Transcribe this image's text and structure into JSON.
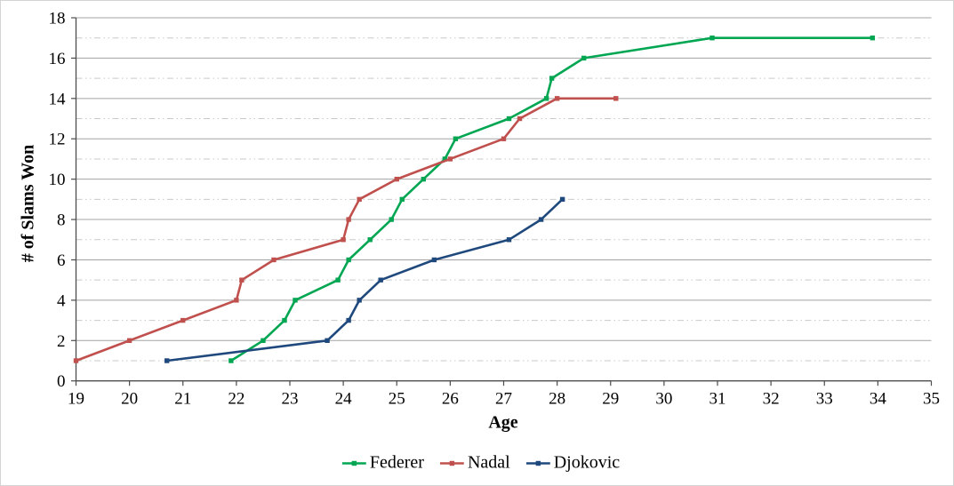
{
  "chart_data": {
    "type": "line",
    "title": "",
    "xlabel": "Age",
    "ylabel": "# of Slams Won",
    "xlim": [
      19,
      35
    ],
    "ylim": [
      0,
      18
    ],
    "xticks": [
      19,
      20,
      21,
      22,
      23,
      24,
      25,
      26,
      27,
      28,
      29,
      30,
      31,
      32,
      33,
      34,
      35
    ],
    "yticks": [
      0,
      2,
      4,
      6,
      8,
      10,
      12,
      14,
      16,
      18
    ],
    "grid": {
      "major_style": "solid",
      "major_values": [
        2,
        4,
        6,
        8,
        10,
        12,
        14,
        16,
        18
      ],
      "minor_style": "dash-dot",
      "minor_values": [
        1,
        3,
        5,
        7,
        9,
        11,
        13,
        15,
        17
      ],
      "major_color": "#a3a3a3",
      "minor_color": "#c9c9c9"
    },
    "axis_color": "#4d4d4d",
    "legend_position": "bottom",
    "series": [
      {
        "name": "Federer",
        "color": "#00a651",
        "points": [
          [
            21.9,
            1
          ],
          [
            22.5,
            2
          ],
          [
            22.9,
            3
          ],
          [
            23.1,
            4
          ],
          [
            23.9,
            5
          ],
          [
            24.1,
            6
          ],
          [
            24.5,
            7
          ],
          [
            24.9,
            8
          ],
          [
            25.1,
            9
          ],
          [
            25.5,
            10
          ],
          [
            25.9,
            11
          ],
          [
            26.1,
            12
          ],
          [
            27.1,
            13
          ],
          [
            27.8,
            14
          ],
          [
            27.9,
            15
          ],
          [
            28.5,
            16
          ],
          [
            30.9,
            17
          ],
          [
            33.9,
            17
          ]
        ]
      },
      {
        "name": "Nadal",
        "color": "#c0504d",
        "points": [
          [
            19,
            1
          ],
          [
            20,
            2
          ],
          [
            21,
            3
          ],
          [
            22,
            4
          ],
          [
            22.1,
            5
          ],
          [
            22.7,
            6
          ],
          [
            24,
            7
          ],
          [
            24.1,
            8
          ],
          [
            24.3,
            9
          ],
          [
            25,
            10
          ],
          [
            26,
            11
          ],
          [
            27,
            12
          ],
          [
            27.3,
            13
          ],
          [
            28,
            14
          ],
          [
            29.1,
            14
          ]
        ]
      },
      {
        "name": "Djokovic",
        "color": "#1f497d",
        "points": [
          [
            20.7,
            1
          ],
          [
            23.7,
            2
          ],
          [
            24.1,
            3
          ],
          [
            24.3,
            4
          ],
          [
            24.7,
            5
          ],
          [
            25.7,
            6
          ],
          [
            27.1,
            7
          ],
          [
            27.7,
            8
          ],
          [
            28.1,
            9
          ]
        ]
      }
    ]
  }
}
